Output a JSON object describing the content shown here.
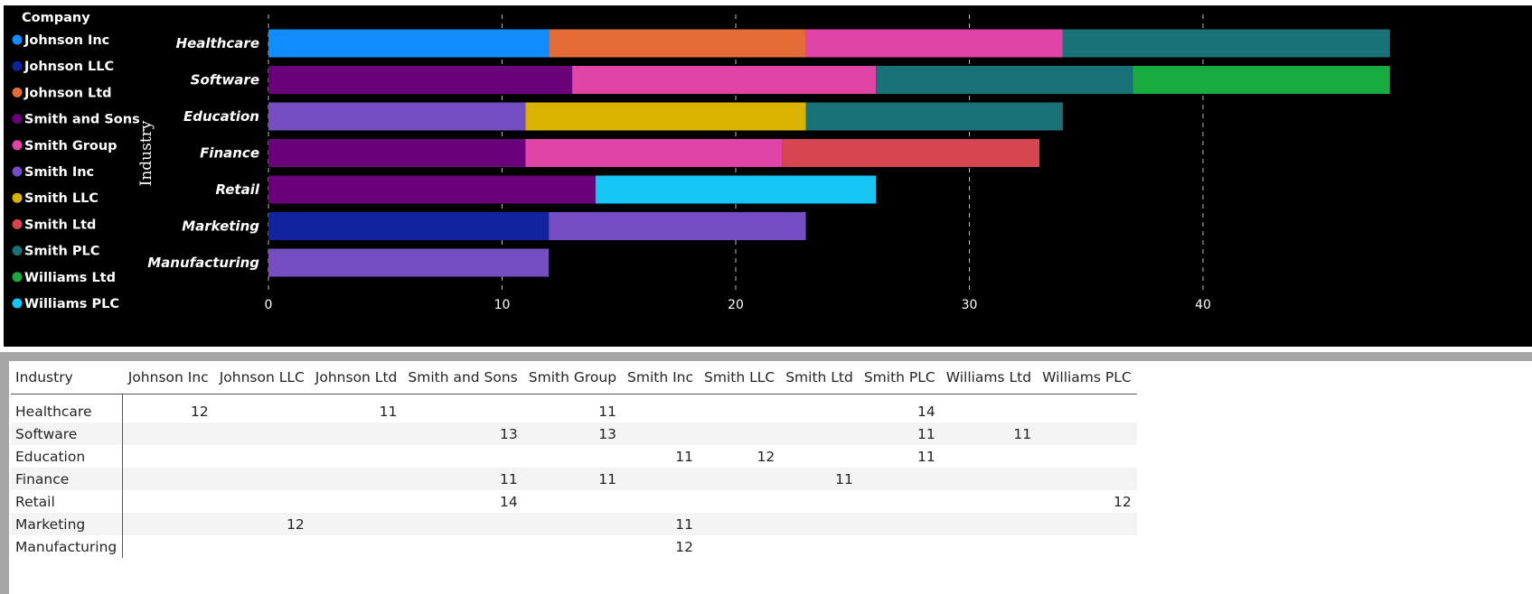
{
  "chart_data": {
    "type": "bar",
    "orientation": "horizontal",
    "stacked": true,
    "ylabel": "Industry",
    "xlabel": "",
    "legend_title": "Company",
    "legend_position": "left",
    "xlim": [
      0,
      48
    ],
    "xticks": [
      0,
      10,
      20,
      30,
      40
    ],
    "grid": true,
    "categories": [
      "Healthcare",
      "Software",
      "Education",
      "Finance",
      "Retail",
      "Marketing",
      "Manufacturing"
    ],
    "series": [
      {
        "name": "Johnson Inc",
        "color": "#118DFF",
        "values": [
          12,
          null,
          null,
          null,
          null,
          null,
          null
        ]
      },
      {
        "name": "Johnson LLC",
        "color": "#12239E",
        "values": [
          null,
          null,
          null,
          null,
          null,
          12,
          null
        ]
      },
      {
        "name": "Johnson Ltd",
        "color": "#E66C37",
        "values": [
          11,
          null,
          null,
          null,
          null,
          null,
          null
        ]
      },
      {
        "name": "Smith and Sons",
        "color": "#6B007B",
        "values": [
          null,
          13,
          null,
          11,
          14,
          null,
          null
        ]
      },
      {
        "name": "Smith Group",
        "color": "#E044A7",
        "values": [
          11,
          13,
          null,
          11,
          null,
          null,
          null
        ]
      },
      {
        "name": "Smith Inc",
        "color": "#744EC2",
        "values": [
          null,
          null,
          11,
          null,
          null,
          11,
          12
        ]
      },
      {
        "name": "Smith LLC",
        "color": "#D9B300",
        "values": [
          null,
          null,
          12,
          null,
          null,
          null,
          null
        ]
      },
      {
        "name": "Smith Ltd",
        "color": "#D64550",
        "values": [
          null,
          null,
          null,
          11,
          null,
          null,
          null
        ]
      },
      {
        "name": "Smith PLC",
        "color": "#197278",
        "values": [
          14,
          11,
          11,
          null,
          null,
          null,
          null
        ]
      },
      {
        "name": "Williams Ltd",
        "color": "#1AAB40",
        "values": [
          null,
          11,
          null,
          null,
          null,
          null,
          null
        ]
      },
      {
        "name": "Williams PLC",
        "color": "#15C6F4",
        "values": [
          null,
          null,
          null,
          null,
          12,
          null,
          null
        ]
      }
    ]
  },
  "table": {
    "header_first": "Industry",
    "columns": [
      "Johnson Inc",
      "Johnson LLC",
      "Johnson Ltd",
      "Smith and Sons",
      "Smith Group",
      "Smith Inc",
      "Smith LLC",
      "Smith Ltd",
      "Smith PLC",
      "Williams Ltd",
      "Williams PLC"
    ],
    "rows": [
      {
        "label": "Healthcare",
        "cells": [
          "12",
          "",
          "11",
          "",
          "11",
          "",
          "",
          "",
          "14",
          "",
          ""
        ]
      },
      {
        "label": "Software",
        "cells": [
          "",
          "",
          "",
          "13",
          "13",
          "",
          "",
          "",
          "11",
          "11",
          ""
        ]
      },
      {
        "label": "Education",
        "cells": [
          "",
          "",
          "",
          "",
          "",
          "11",
          "12",
          "",
          "11",
          "",
          ""
        ]
      },
      {
        "label": "Finance",
        "cells": [
          "",
          "",
          "",
          "11",
          "11",
          "",
          "",
          "11",
          "",
          "",
          ""
        ]
      },
      {
        "label": "Retail",
        "cells": [
          "",
          "",
          "",
          "14",
          "",
          "",
          "",
          "",
          "",
          "",
          "12"
        ]
      },
      {
        "label": "Marketing",
        "cells": [
          "",
          "12",
          "",
          "",
          "",
          "11",
          "",
          "",
          "",
          "",
          ""
        ]
      },
      {
        "label": "Manufacturing",
        "cells": [
          "",
          "",
          "",
          "",
          "",
          "12",
          "",
          "",
          "",
          "",
          ""
        ]
      }
    ]
  }
}
